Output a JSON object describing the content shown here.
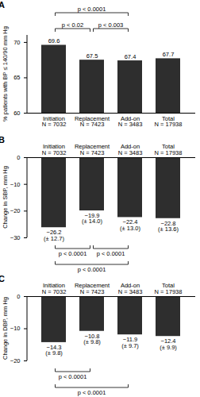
{
  "chart_data": [
    {
      "type": "bar",
      "panel": "A",
      "ylabel": "% patients with BP ≤ 140/90 mm Hg",
      "categories": [
        "Initiation",
        "Replacement",
        "Add-on",
        "Total"
      ],
      "n_labels": [
        "N = 7032",
        "N = 7423",
        "N = 3483",
        "N = 17938"
      ],
      "values": [
        69.6,
        67.5,
        67.4,
        67.7
      ],
      "color": "#2e2e2e",
      "ylim": [
        60,
        71
      ],
      "yticks": [
        60,
        65,
        70
      ],
      "grid": false,
      "data_labels": true,
      "comparisons": [
        {
          "pair": [
            "Initiation",
            "Add-on"
          ],
          "label": "p < 0.0001"
        },
        {
          "pair": [
            "Initiation",
            "Replacement"
          ],
          "label": "p < 0.02"
        },
        {
          "pair": [
            "Replacement",
            "Add-on"
          ],
          "label": "p < 0.003"
        }
      ]
    },
    {
      "type": "bar",
      "panel": "B",
      "ylabel": "Change in SBP, mm Hg",
      "categories": [
        "Initiation",
        "Replacement",
        "Add-on",
        "Total"
      ],
      "n_labels": [
        "N = 7032",
        "N = 7423",
        "N = 3483",
        "N = 17938"
      ],
      "values": [
        -26.2,
        -19.9,
        -22.4,
        -22.8
      ],
      "value_labels": [
        "−26.2\n(± 12.7)",
        "−19.9\n(± 14.0)",
        "−22.4\n(± 13.0)",
        "−22.8\n(± 13.6)"
      ],
      "color": "#2e2e2e",
      "ylim": [
        -30,
        0
      ],
      "yticks": [
        0,
        -10,
        -20,
        -30
      ],
      "grid": false,
      "data_labels": true,
      "comparisons": [
        {
          "pair": [
            "Initiation",
            "Replacement"
          ],
          "label": "p < 0.0001"
        },
        {
          "pair": [
            "Replacement",
            "Add-on"
          ],
          "label": "p < 0.0001"
        },
        {
          "pair": [
            "Initiation",
            "Add-on"
          ],
          "label": "p < 0.0001"
        }
      ]
    },
    {
      "type": "bar",
      "panel": "C",
      "ylabel": "Change in DBP, mm Hg",
      "categories": [
        "Initiation",
        "Replacement",
        "Add-on",
        "Total"
      ],
      "n_labels": [
        "N = 7032",
        "N = 7423",
        "N = 3483",
        "N = 17938"
      ],
      "values": [
        -14.3,
        -10.8,
        -11.9,
        -12.4
      ],
      "value_labels": [
        "−14.3\n(± 9.8)",
        "−10.8\n(± 9.8)",
        "−11.9\n(± 9.7)",
        "−12.4\n(± 9.9)"
      ],
      "color": "#2e2e2e",
      "ylim": [
        -20,
        0
      ],
      "yticks": [
        0,
        -10,
        -20
      ],
      "grid": false,
      "data_labels": true,
      "comparisons": [
        {
          "pair": [
            "Initiation",
            "Replacement"
          ],
          "label": "p < 0.0001"
        },
        {
          "pair": [
            "Initiation",
            "Add-on"
          ],
          "label": "p < 0.0001"
        }
      ]
    }
  ]
}
